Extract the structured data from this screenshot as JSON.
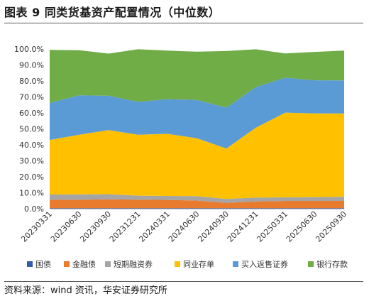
{
  "header": {
    "title": "图表 9 同类货基资产配置情况（中位数）"
  },
  "footer": {
    "source": "资料来源：wind 资讯，华安证券研究所"
  },
  "chart_data": {
    "type": "area",
    "stacked": true,
    "title": "",
    "xlabel": "",
    "ylabel": "",
    "x": [
      "20230331",
      "20230630",
      "20230930",
      "20231231",
      "20240331",
      "20240630",
      "20240930",
      "20241231",
      "20250331",
      "20250630",
      "20250930"
    ],
    "ylim": [
      0,
      100
    ],
    "yticks": [
      "0.0%",
      "10.0%",
      "20.0%",
      "30.0%",
      "40.0%",
      "50.0%",
      "60.0%",
      "70.0%",
      "80.0%",
      "90.0%",
      "100.0%"
    ],
    "grid": false,
    "legend_position": "bottom",
    "series": [
      {
        "name": "国债",
        "color": "#2e5fa8",
        "values": [
          0.3,
          0.3,
          0.3,
          0.3,
          0.3,
          0.3,
          0.3,
          0.3,
          0.3,
          0.3,
          0.3
        ]
      },
      {
        "name": "金融债",
        "color": "#e87b2e",
        "values": [
          5.3,
          5.3,
          5.6,
          5.4,
          5.2,
          4.8,
          3.4,
          4.3,
          4.6,
          4.6,
          4.6
        ]
      },
      {
        "name": "短期融资券",
        "color": "#a5a5a5",
        "values": [
          3.3,
          3.4,
          3.2,
          2.5,
          2.5,
          2.8,
          2.4,
          2.4,
          2.2,
          2.4,
          2.6
        ]
      },
      {
        "name": "同业存单",
        "color": "#ffc000",
        "values": [
          34.1,
          37.3,
          40.1,
          38.1,
          38.9,
          36.2,
          31.6,
          43.7,
          53.1,
          52.4,
          52.1
        ]
      },
      {
        "name": "买入返售证券",
        "color": "#5b9bd5",
        "values": [
          23.2,
          24.7,
          21.5,
          20.6,
          21.7,
          24.0,
          25.6,
          25.5,
          21.8,
          20.7,
          20.7
        ]
      },
      {
        "name": "银行存款",
        "color": "#70ad47",
        "values": [
          33.2,
          28.2,
          26.4,
          32.9,
          30.4,
          30.2,
          35.4,
          23.6,
          15.2,
          17.8,
          18.7
        ]
      }
    ]
  }
}
